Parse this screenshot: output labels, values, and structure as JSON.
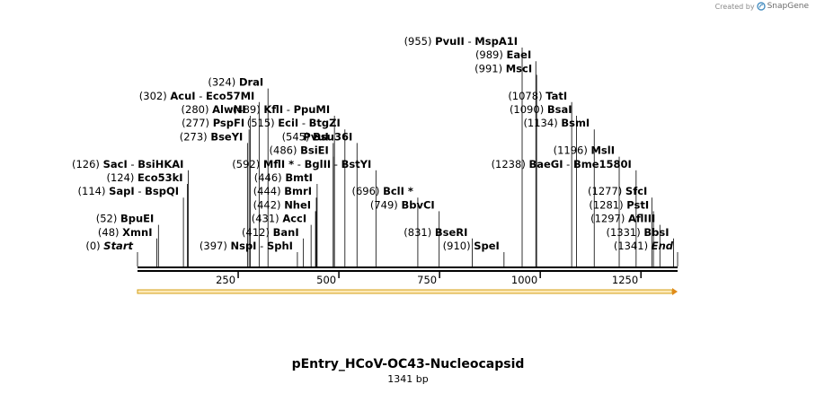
{
  "app": {
    "credit_prefix": "Created by",
    "credit_brand": "SnapGene",
    "credit_icon": "snapgene-logo-icon"
  },
  "map": {
    "title": "pEntry_HCoV-OC43-Nucleocapsid",
    "length_text": "1341 bp",
    "length": 1341,
    "colors": {
      "backbone": "#000000",
      "feature_fill": "#fde9b8",
      "feature_border": "#d4a017",
      "arrow": "#e08b1a",
      "tick": "#000000"
    },
    "ticks": [
      {
        "pos": 250,
        "label": "250"
      },
      {
        "pos": 500,
        "label": "500"
      },
      {
        "pos": 750,
        "label": "750"
      },
      {
        "pos": 1000,
        "label": "1000"
      },
      {
        "pos": 1250,
        "label": "1250"
      }
    ],
    "sites": [
      {
        "names": [
          "Start"
        ],
        "pos": 0,
        "pos_text": "(0)",
        "style": "italic",
        "row": 0
      },
      {
        "names": [
          "XmnI"
        ],
        "pos": 48,
        "pos_text": "(48)",
        "row": 1
      },
      {
        "names": [
          "BpuEI"
        ],
        "pos": 52,
        "pos_text": "(52)",
        "row": 2
      },
      {
        "names": [
          "SapI",
          "BspQI"
        ],
        "pos": 114,
        "pos_text": "(114)",
        "row": 4
      },
      {
        "names": [
          "Eco53kI"
        ],
        "pos": 124,
        "pos_text": "(124)",
        "row": 5
      },
      {
        "names": [
          "SacI",
          "BsiHKAI"
        ],
        "pos": 126,
        "pos_text": "(126)",
        "row": 6
      },
      {
        "names": [
          "BseYI"
        ],
        "pos": 273,
        "pos_text": "(273)",
        "row": 8
      },
      {
        "names": [
          "PspFI"
        ],
        "pos": 277,
        "pos_text": "(277)",
        "row": 9
      },
      {
        "names": [
          "AlwNI"
        ],
        "pos": 280,
        "pos_text": "(280)",
        "row": 10
      },
      {
        "names": [
          "AcuI",
          "Eco57MI"
        ],
        "pos": 302,
        "pos_text": "(302)",
        "row": 11
      },
      {
        "names": [
          "DraI"
        ],
        "pos": 324,
        "pos_text": "(324)",
        "row": 12
      },
      {
        "names": [
          "NspI",
          "SphI"
        ],
        "pos": 397,
        "pos_text": "(397)",
        "row": 0,
        "text_pos_before": true
      },
      {
        "names": [
          "BanI"
        ],
        "pos": 412,
        "pos_text": "(412)",
        "row": 1,
        "text_pos_before": true
      },
      {
        "names": [
          "AccI"
        ],
        "pos": 431,
        "pos_text": "(431)",
        "row": 2,
        "text_pos_before": true
      },
      {
        "names": [
          "NheI"
        ],
        "pos": 442,
        "pos_text": "(442)",
        "row": 3,
        "text_pos_before": true
      },
      {
        "names": [
          "BmrI"
        ],
        "pos": 444,
        "pos_text": "(444)",
        "row": 4,
        "text_pos_before": true
      },
      {
        "names": [
          "BmtI"
        ],
        "pos": 446,
        "pos_text": "(446)",
        "row": 5,
        "text_pos_before": true
      },
      {
        "names": [
          "BsiEI"
        ],
        "pos": 486,
        "pos_text": "(486)",
        "row": 7,
        "text_pos_before": true
      },
      {
        "names": [
          "PvuI"
        ],
        "pos": 486,
        "pos_text": "",
        "row": 8
      },
      {
        "names": [
          "Bsu36I"
        ],
        "pos": 545,
        "pos_text": "(545)",
        "row": 8
      },
      {
        "names": [
          "EciI",
          "BtgZI"
        ],
        "pos": 515,
        "pos_text": "(515)",
        "row": 9
      },
      {
        "names": [
          "KflI",
          "PpuMI"
        ],
        "pos": 489,
        "pos_text": "(489)",
        "row": 10
      },
      {
        "names": [
          "MflI *",
          "BglII",
          "BstYI"
        ],
        "pos": 592,
        "pos_text": "(592)",
        "row": 6
      },
      {
        "names": [
          "BclI *"
        ],
        "pos": 696,
        "pos_text": "(696)",
        "row": 4
      },
      {
        "names": [
          "BbvCI"
        ],
        "pos": 749,
        "pos_text": "(749)",
        "row": 3
      },
      {
        "names": [
          "BseRI"
        ],
        "pos": 831,
        "pos_text": "(831)",
        "row": 1
      },
      {
        "names": [
          "SpeI"
        ],
        "pos": 910,
        "pos_text": "(910)",
        "row": 0
      },
      {
        "names": [
          "PvuII",
          "MspA1I"
        ],
        "pos": 955,
        "pos_text": "(955)",
        "row": 15
      },
      {
        "names": [
          "EaeI"
        ],
        "pos": 989,
        "pos_text": "(989)",
        "row": 14
      },
      {
        "names": [
          "MscI"
        ],
        "pos": 991,
        "pos_text": "(991)",
        "row": 13
      },
      {
        "names": [
          "TatI"
        ],
        "pos": 1078,
        "pos_text": "(1078)",
        "row": 11
      },
      {
        "names": [
          "BsaI"
        ],
        "pos": 1090,
        "pos_text": "(1090)",
        "row": 10
      },
      {
        "names": [
          "BsmI"
        ],
        "pos": 1134,
        "pos_text": "(1134)",
        "row": 9
      },
      {
        "names": [
          "MslI"
        ],
        "pos": 1196,
        "pos_text": "(1196)",
        "row": 7
      },
      {
        "names": [
          "BaeGI",
          "Bme1580I"
        ],
        "pos": 1238,
        "pos_text": "(1238)",
        "row": 6
      },
      {
        "names": [
          "SfcI"
        ],
        "pos": 1277,
        "pos_text": "(1277)",
        "row": 4
      },
      {
        "names": [
          "PstI"
        ],
        "pos": 1281,
        "pos_text": "(1281)",
        "row": 3
      },
      {
        "names": [
          "AflIII"
        ],
        "pos": 1297,
        "pos_text": "(1297)",
        "row": 2
      },
      {
        "names": [
          "BbsI"
        ],
        "pos": 1331,
        "pos_text": "(1331)",
        "row": 1
      },
      {
        "names": [
          "End"
        ],
        "pos": 1341,
        "pos_text": "(1341)",
        "style": "italic",
        "row": 0
      }
    ]
  }
}
